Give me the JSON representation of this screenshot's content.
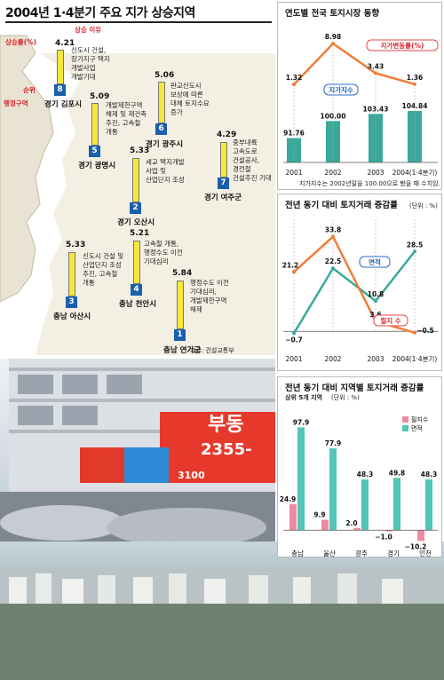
{
  "page_title": "2004년 1·4분기 주요 지가 상승지역",
  "map": {
    "legend_rate": "상승률(%)",
    "legend_reason": "상승 이유",
    "legend_rank": "순위",
    "legend_region": "행정구역",
    "source": "자료: 건설교통부",
    "ranks": [
      {
        "rank": "8",
        "value": "4.21",
        "region": "경기 김포시",
        "reason": "신도시 건설,\n장기지구 택지\n개발사업\n개발기대"
      },
      {
        "rank": "5",
        "value": "5.09",
        "region": "경기 광명시",
        "reason": "개발제한구역\n해제 및 재건축\n추진, 고속철\n개통"
      },
      {
        "rank": "6",
        "value": "5.06",
        "region": "경기 광주시",
        "reason": "판교신도시\n보상에 따른\n대체 토지수요\n증가"
      },
      {
        "rank": "7",
        "value": "4.29",
        "region": "경기 여주군",
        "reason": "중부내륙\n고속도로\n건설공사,\n경전철\n건설추진 기대"
      },
      {
        "rank": "2",
        "value": "5.33",
        "region": "경기 오산시",
        "reason": "세교 택지개발\n사업 및\n산업단지 조성"
      },
      {
        "rank": "3",
        "value": "5.33",
        "region": "충남 아산시",
        "reason": "신도시 건설 및\n산업단지 조성\n추진, 고속철\n개통"
      },
      {
        "rank": "4",
        "value": "5.21",
        "region": "충남 천안시",
        "reason": "고속철 개통,\n행정수도 이전\n기대심리"
      },
      {
        "rank": "1",
        "value": "5.84",
        "region": "충남 연기군",
        "reason": "행정수도 이전\n기대심리,\n개발제한구역\n해제"
      }
    ]
  },
  "photo_signs": {
    "sign1": "부동",
    "sign2": "2355-",
    "sign3": "3100"
  },
  "chart_data": [
    {
      "type": "bar",
      "title": "연도별 전국 토지시장 동향",
      "categories": [
        "2001",
        "2002",
        "2003",
        "2004(1·4분기)"
      ],
      "series": [
        {
          "name": "지가지수",
          "values": [
            91.76,
            100.0,
            103.43,
            104.84
          ],
          "labels": [
            "91.76",
            "100.00",
            "103.43",
            "104.84"
          ],
          "color": "#3aa99a"
        },
        {
          "name": "지가변동률(%)",
          "values": [
            1.32,
            8.98,
            3.43,
            1.36
          ],
          "labels": [
            "1.32",
            "8.98",
            "3.43",
            "1.36"
          ],
          "color": "#ef7d3a",
          "type": "line"
        }
      ],
      "note": "지가지수는 2002년말을 100.00으로 봤을 때 수치임."
    },
    {
      "type": "line",
      "title": "전년 동기 대비 토지거래 증감률",
      "unit": "(단위 : %)",
      "categories": [
        "2001",
        "2002",
        "2003",
        "2004(1·4분기)"
      ],
      "series": [
        {
          "name": "면적",
          "values": [
            -0.7,
            22.5,
            10.8,
            28.5
          ],
          "labels": [
            "−0.7",
            "22.5",
            "10.8",
            "28.5"
          ],
          "color": "#3aa99a"
        },
        {
          "name": "필지 수",
          "values": [
            21.2,
            33.8,
            3.6,
            -0.5
          ],
          "labels": [
            "21.2",
            "33.8",
            "3.6",
            "−0.5"
          ],
          "color": "#ef7d3a"
        }
      ]
    },
    {
      "type": "bar",
      "title": "전년 동기 대비 지역별 토지거래 증감률",
      "subtitle": "상위 5개 지역",
      "unit": "(단위 : %)",
      "categories": [
        "충남",
        "울산",
        "광주",
        "경기",
        "인천"
      ],
      "series": [
        {
          "name": "필지수",
          "values": [
            24.9,
            9.9,
            2.0,
            -1.0,
            -10.2
          ],
          "labels": [
            "24.9",
            "9.9",
            "2.0",
            "−1.0",
            "−10.2"
          ],
          "color": "#f08aa0"
        },
        {
          "name": "면적",
          "values": [
            97.9,
            77.9,
            48.3,
            49.8,
            48.3
          ],
          "labels": [
            "97.9",
            "77.9",
            "48.3",
            "49.8",
            "48.3"
          ],
          "color": "#52c6b4"
        }
      ]
    }
  ]
}
